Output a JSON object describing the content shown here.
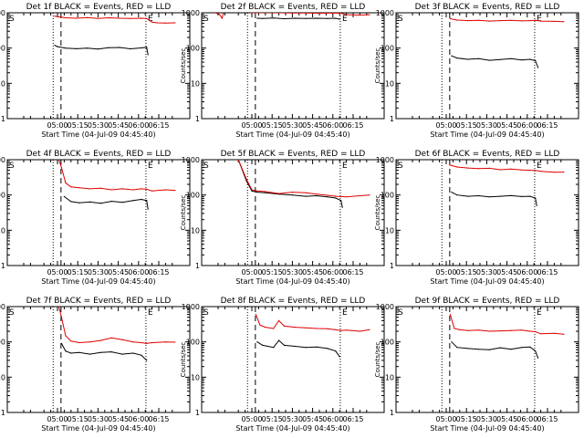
{
  "colors": {
    "events": "#000000",
    "lld": "#dd0000",
    "axis": "#000000"
  },
  "chart_data": {
    "type": "line",
    "scale": "log",
    "ylim": [
      1,
      1000
    ],
    "y_ticks": [
      "1",
      "10",
      "100",
      "1000"
    ],
    "x_ticks": [
      "05:00",
      "05:15",
      "05:30",
      "05:45",
      "06:00",
      "06:15"
    ],
    "xlabel": "Start Time (04-Jul-09 04:45:40)",
    "ylabel": "Counts/sec",
    "markers": {
      "start": "S",
      "end": "E"
    },
    "panels": [
      {
        "title": "Det 1f BLACK = Events, RED = LLD",
        "series": [
          {
            "name": "Events",
            "color": "#000000",
            "x": [
              -2,
              0,
              6,
              14,
              22,
              30,
              38,
              46,
              54,
              62,
              66,
              67
            ],
            "y": [
              120,
              110,
              100,
              96,
              100,
              94,
              102,
              104,
              95,
              101,
              106,
              65
            ]
          },
          {
            "name": "LLD",
            "color": "#dd0000",
            "x": [
              -2,
              0,
              6,
              14,
              22,
              30,
              38,
              46,
              54,
              62,
              66,
              70,
              74,
              80,
              87
            ],
            "y": [
              800,
              780,
              720,
              700,
              730,
              690,
              720,
              700,
              690,
              700,
              690,
              540,
              520,
              510,
              520
            ]
          }
        ]
      },
      {
        "title": "Det 2f BLACK = Events, RED = LLD",
        "series": [
          {
            "name": "Events",
            "color": "#000000",
            "x": [
              4,
              8,
              16,
              24,
              32,
              40,
              48,
              56,
              62,
              65
            ],
            "y": [
              700,
              690,
              710,
              680,
              700,
              690,
              700,
              690,
              700,
              660
            ]
          },
          {
            "name": "LLD",
            "color": "#dd0000",
            "x": [
              -27,
              -24,
              -22,
              -20,
              -15,
              -10,
              -5,
              0,
              5,
              10,
              20,
              30,
              40,
              50,
              60,
              66,
              70,
              80,
              87
            ],
            "y": [
              1000,
              900,
              700,
              1400,
              1300,
              1100,
              1050,
              1000,
              1000,
              1010,
              1000,
              980,
              990,
              970,
              980,
              970,
              880,
              860,
              880
            ]
          }
        ]
      },
      {
        "title": "Det 3f BLACK = Events, RED = LLD",
        "series": [
          {
            "name": "Events",
            "color": "#000000",
            "x": [
              4,
              8,
              16,
              24,
              32,
              40,
              48,
              56,
              62,
              66,
              68
            ],
            "y": [
              60,
              52,
              48,
              50,
              45,
              47,
              50,
              46,
              48,
              44,
              28
            ]
          },
          {
            "name": "LLD",
            "color": "#dd0000",
            "x": [
              3,
              8,
              16,
              24,
              32,
              40,
              48,
              56,
              62,
              66,
              70,
              80,
              87
            ],
            "y": [
              680,
              620,
              600,
              610,
              580,
              600,
              610,
              590,
              600,
              610,
              580,
              570,
              560
            ]
          }
        ]
      },
      {
        "title": "Det 4f BLACK = Events, RED = LLD",
        "series": [
          {
            "name": "Events",
            "color": "#000000",
            "x": [
              5,
              10,
              16,
              24,
              32,
              40,
              48,
              56,
              62,
              66,
              67
            ],
            "y": [
              90,
              65,
              60,
              63,
              58,
              66,
              62,
              70,
              75,
              70,
              40
            ]
          },
          {
            "name": "LLD",
            "color": "#dd0000",
            "x": [
              1,
              3,
              6,
              10,
              16,
              24,
              32,
              40,
              48,
              56,
              62,
              66,
              70,
              80,
              87
            ],
            "y": [
              1000,
              600,
              220,
              170,
              160,
              150,
              155,
              140,
              150,
              140,
              150,
              145,
              130,
              140,
              135
            ]
          }
        ]
      },
      {
        "title": "Det 5f BLACK = Events, RED = LLD",
        "series": [
          {
            "name": "Events",
            "color": "#000000",
            "x": [
              -10,
              -4,
              0,
              4,
              10,
              20,
              30,
              40,
              48,
              56,
              62,
              66,
              67
            ],
            "y": [
              1000,
              250,
              130,
              120,
              115,
              105,
              100,
              92,
              95,
              88,
              82,
              70,
              45
            ]
          },
          {
            "name": "LLD",
            "color": "#dd0000",
            "x": [
              -10,
              -4,
              0,
              4,
              10,
              20,
              30,
              40,
              48,
              56,
              62,
              66,
              70,
              80,
              87
            ],
            "y": [
              1000,
              280,
              140,
              130,
              125,
              110,
              120,
              115,
              105,
              98,
              92,
              90,
              88,
              95,
              100
            ]
          }
        ]
      },
      {
        "title": "Det 6f BLACK = Events, RED = LLD",
        "series": [
          {
            "name": "Events",
            "color": "#000000",
            "x": [
              4,
              8,
              16,
              24,
              32,
              40,
              48,
              56,
              62,
              66,
              67
            ],
            "y": [
              120,
              100,
              92,
              95,
              88,
              92,
              96,
              90,
              92,
              82,
              50
            ]
          },
          {
            "name": "LLD",
            "color": "#dd0000",
            "x": [
              3,
              8,
              16,
              24,
              32,
              40,
              48,
              56,
              62,
              66,
              70,
              80,
              87
            ],
            "y": [
              700,
              620,
              580,
              560,
              570,
              520,
              540,
              510,
              500,
              495,
              470,
              440,
              445
            ]
          }
        ]
      },
      {
        "title": "Det 7f BLACK = Events, RED = LLD",
        "series": [
          {
            "name": "Events",
            "color": "#000000",
            "x": [
              3,
              6,
              10,
              16,
              24,
              32,
              40,
              48,
              56,
              62,
              66
            ],
            "y": [
              90,
              55,
              48,
              50,
              45,
              50,
              52,
              45,
              48,
              42,
              30
            ]
          },
          {
            "name": "LLD",
            "color": "#dd0000",
            "x": [
              1,
              3,
              6,
              10,
              16,
              24,
              32,
              40,
              48,
              56,
              62,
              66,
              70,
              80,
              87
            ],
            "y": [
              1000,
              500,
              150,
              105,
              95,
              100,
              110,
              130,
              115,
              100,
              95,
              90,
              95,
              100,
              98
            ]
          }
        ]
      },
      {
        "title": "Det 8f BLACK = Events, RED = LLD",
        "series": [
          {
            "name": "Events",
            "color": "#000000",
            "x": [
              4,
              8,
              16,
              20,
              24,
              32,
              40,
              48,
              56,
              62,
              65
            ],
            "y": [
              100,
              80,
              70,
              110,
              80,
              75,
              70,
              72,
              65,
              55,
              38
            ]
          },
          {
            "name": "LLD",
            "color": "#dd0000",
            "x": [
              3,
              6,
              10,
              16,
              20,
              24,
              32,
              40,
              48,
              56,
              62,
              66,
              70,
              80,
              87
            ],
            "y": [
              600,
              300,
              260,
              240,
              400,
              280,
              260,
              250,
              240,
              235,
              220,
              210,
              215,
              200,
              220
            ]
          }
        ]
      },
      {
        "title": "Det 9f BLACK = Events, RED = LLD",
        "series": [
          {
            "name": "Events",
            "color": "#000000",
            "x": [
              4,
              8,
              16,
              24,
              32,
              40,
              48,
              56,
              62,
              66,
              68
            ],
            "y": [
              100,
              70,
              65,
              62,
              60,
              68,
              62,
              70,
              72,
              55,
              35
            ]
          },
          {
            "name": "LLD",
            "color": "#dd0000",
            "x": [
              3,
              6,
              10,
              16,
              24,
              32,
              40,
              48,
              56,
              62,
              66,
              70,
              80,
              87
            ],
            "y": [
              600,
              240,
              220,
              210,
              215,
              200,
              205,
              210,
              215,
              200,
              195,
              170,
              175,
              165
            ]
          }
        ]
      }
    ]
  }
}
